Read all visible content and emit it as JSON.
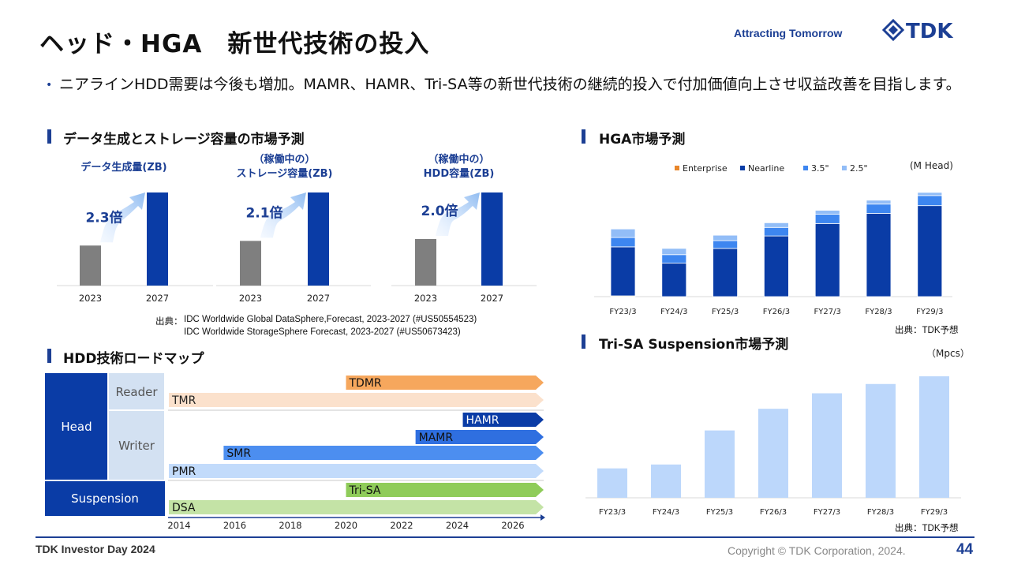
{
  "header": {
    "title": "ヘッド・HGA　新世代技術の投入",
    "tagline": "Attracting Tomorrow",
    "logo_text": "TDK"
  },
  "bullet": "ニアラインHDD需要は今後も増加。MAMR、HAMR、Tri-SA等の新世代技術の継続的投入で付加価値向上させ収益改善を目指します。",
  "sections": {
    "data_market": "データ生成とストレージ容量の市場予測",
    "hga": "HGA市場予測",
    "roadmap": "HDD技術ロードマップ",
    "trisa": "Tri-SA Suspension市場予測"
  },
  "sources": {
    "idc_prefix": "出典：",
    "idc_line1": "IDC  Worldwide  Global  DataSphere,Forecast,  2023-2027  (#US50554523)",
    "idc_line2": "IDC  Worldwide  StorageSphere  Forecast,  2023-2027  (#US50673423)",
    "tdk1": "出典：TDK予想",
    "tdk2": "出典：TDK予想"
  },
  "footer": {
    "left": "TDK Investor Day 2024",
    "copyright": "Copyright  © TDK Corporation, 2024.",
    "page": "44"
  },
  "colors": {
    "brand": "#1c3f94",
    "gray_bar": "#7f7f7f",
    "blue_bar": "#0a3ca6",
    "nearline": "#0a3ca6",
    "hdd35": "#3d86f0",
    "hdd25": "#92bdf7",
    "enterprise": "#e8862a",
    "trisa_bar": "#bcd7fb"
  },
  "chart_data": [
    {
      "type": "bar",
      "title": "データ生成量(ZB)",
      "categories": [
        "2023",
        "2027"
      ],
      "values": [
        0.43,
        1.0
      ],
      "annotation": "2.3倍"
    },
    {
      "type": "bar",
      "title": "（稼働中の）ストレージ容量(ZB)",
      "title_lines": [
        "（稼働中の）",
        "ストレージ容量(ZB)"
      ],
      "categories": [
        "2023",
        "2027"
      ],
      "values": [
        0.48,
        1.0
      ],
      "annotation": "2.1倍"
    },
    {
      "type": "bar",
      "title": "（稼働中の）HDD容量(ZB)",
      "title_lines": [
        "（稼働中の）",
        "HDD容量(ZB)"
      ],
      "categories": [
        "2023",
        "2027"
      ],
      "values": [
        0.5,
        1.0
      ],
      "annotation": "2.0倍"
    },
    {
      "type": "bar",
      "stacked": true,
      "unit": "(M Head)",
      "categories": [
        "FY23/3",
        "FY24/3",
        "FY25/3",
        "FY26/3",
        "FY27/3",
        "FY28/3",
        "FY29/3"
      ],
      "series": [
        {
          "name": "Enterprise",
          "color": "#e8862a",
          "values": [
            1,
            0,
            0,
            0,
            0,
            0,
            0
          ]
        },
        {
          "name": "Nearline",
          "color": "#0a3ca6",
          "values": [
            63,
            43,
            62,
            78,
            94,
            107,
            117
          ]
        },
        {
          "name": "3.5\"",
          "color": "#3d86f0",
          "values": [
            12,
            11,
            10,
            11,
            12,
            12,
            13
          ]
        },
        {
          "name": "2.5\"",
          "color": "#92bdf7",
          "values": [
            11,
            8,
            7,
            6,
            5,
            5,
            4
          ]
        }
      ],
      "ylim": [
        0,
        140
      ],
      "legend": "top"
    },
    {
      "type": "bar",
      "unit": "（Mpcs）",
      "categories": [
        "FY23/3",
        "FY24/3",
        "FY25/3",
        "FY26/3",
        "FY27/3",
        "FY28/3",
        "FY29/3"
      ],
      "values": [
        38,
        43,
        87,
        115,
        135,
        147,
        157
      ],
      "ylim": [
        0,
        160
      ]
    }
  ],
  "roadmap": {
    "years": [
      "2014",
      "2016",
      "2018",
      "2020",
      "2022",
      "2024",
      "2026"
    ],
    "head_label": "Head",
    "reader_label": "Reader",
    "writer_label": "Writer",
    "suspension_label": "Suspension",
    "bars": [
      {
        "label": "TDMR",
        "start": 2020.0,
        "color": "#f6a75d",
        "text_color": "#111"
      },
      {
        "label": "TMR",
        "start": 2014.0,
        "color": "#fbe1cc",
        "text_color": "#222"
      },
      {
        "label": "HAMR",
        "start": 2024.2,
        "color": "#0a3ca6",
        "text_color": "#fff"
      },
      {
        "label": "MAMR",
        "start": 2022.5,
        "color": "#2f6fe0",
        "text_color": "#111"
      },
      {
        "label": "SMR",
        "start": 2015.6,
        "color": "#4c8ef0",
        "text_color": "#111"
      },
      {
        "label": "PMR",
        "start": 2014.0,
        "color": "#c2dbfb",
        "text_color": "#111"
      },
      {
        "label": "Tri-SA",
        "start": 2020.0,
        "color": "#8fcc5a",
        "text_color": "#111"
      },
      {
        "label": "DSA",
        "start": 2014.0,
        "color": "#c4e3a6",
        "text_color": "#111"
      }
    ]
  }
}
